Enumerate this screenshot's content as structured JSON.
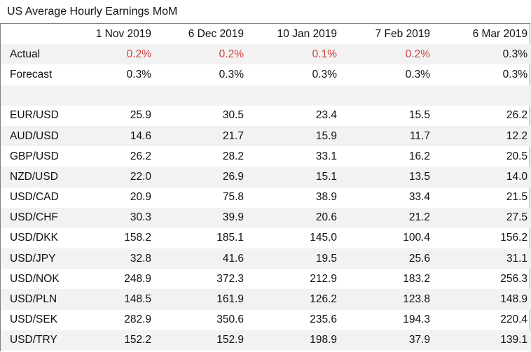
{
  "title": "US Average Hourly Earnings MoM",
  "columns": [
    "1 Nov 2019",
    "6 Dec 2019",
    "10 Jan 2019",
    "7 Feb 2019",
    "6 Mar 2019"
  ],
  "colors": {
    "negative": "#d04040",
    "shade": "#f2f2f2"
  },
  "rows": [
    {
      "label": "Actual",
      "values": [
        "0.2%",
        "0.2%",
        "0.1%",
        "0.2%",
        "0.3%"
      ],
      "red": [
        true,
        true,
        true,
        true,
        false
      ]
    },
    {
      "label": "Forecast",
      "values": [
        "0.3%",
        "0.3%",
        "0.3%",
        "0.3%",
        "0.3%"
      ],
      "red": [
        false,
        false,
        false,
        false,
        false
      ]
    },
    {
      "label": "",
      "values": [
        "",
        "",
        "",
        "",
        ""
      ],
      "red": [
        false,
        false,
        false,
        false,
        false
      ]
    },
    {
      "label": "EUR/USD",
      "values": [
        "25.9",
        "30.5",
        "23.4",
        "15.5",
        "26.2"
      ]
    },
    {
      "label": "AUD/USD",
      "values": [
        "14.6",
        "21.7",
        "15.9",
        "11.7",
        "12.2"
      ]
    },
    {
      "label": "GBP/USD",
      "values": [
        "26.2",
        "28.2",
        "33.1",
        "16.2",
        "20.5"
      ]
    },
    {
      "label": "NZD/USD",
      "values": [
        "22.0",
        "26.9",
        "15.1",
        "13.5",
        "14.0"
      ]
    },
    {
      "label": "USD/CAD",
      "values": [
        "20.9",
        "75.8",
        "38.9",
        "33.4",
        "21.5"
      ]
    },
    {
      "label": "USD/CHF",
      "values": [
        "30.3",
        "39.9",
        "20.6",
        "21.2",
        "27.5"
      ]
    },
    {
      "label": "USD/DKK",
      "values": [
        "158.2",
        "185.1",
        "145.0",
        "100.4",
        "156.2"
      ]
    },
    {
      "label": "USD/JPY",
      "values": [
        "32.8",
        "41.6",
        "19.5",
        "25.6",
        "31.1"
      ]
    },
    {
      "label": "USD/NOK",
      "values": [
        "248.9",
        "372.3",
        "212.9",
        "183.2",
        "256.3"
      ]
    },
    {
      "label": "USD/PLN",
      "values": [
        "148.5",
        "161.9",
        "126.2",
        "123.8",
        "148.9"
      ]
    },
    {
      "label": "USD/SEK",
      "values": [
        "282.9",
        "350.6",
        "235.6",
        "194.3",
        "220.4"
      ]
    },
    {
      "label": "USD/TRY",
      "values": [
        "152.2",
        "152.9",
        "198.9",
        "37.9",
        "139.1"
      ]
    }
  ]
}
